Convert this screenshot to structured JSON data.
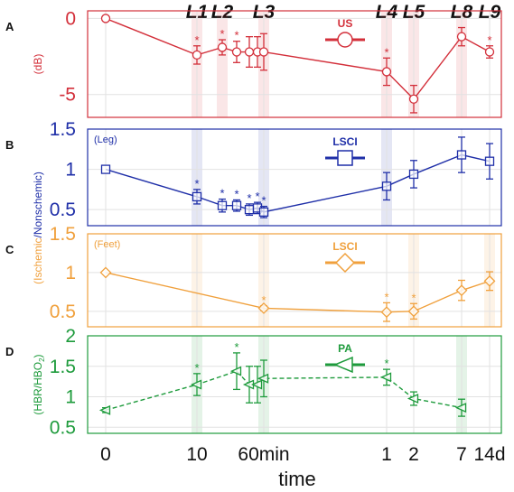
{
  "chart_data": {
    "type": "line",
    "x_tick_labels": [
      "0",
      "10",
      "60min",
      "1",
      "2",
      "7",
      "14d"
    ],
    "xlabel": "time",
    "lesion_labels": [
      "L1",
      "L2",
      "L3",
      "L4",
      "L5",
      "L8",
      "L9"
    ],
    "panels": [
      {
        "letter": "A",
        "ylabel": "(dB)",
        "ylim": [
          -6.5,
          0.5
        ],
        "yticks": [
          {
            "v": 0,
            "t": "0"
          },
          {
            "v": -5,
            "t": "-5"
          }
        ],
        "legend": "US",
        "marker": "circle",
        "color": "#d32f3a",
        "dashed": false,
        "tag": "",
        "shaded": [
          "10",
          "20",
          "60",
          "1d",
          "2d",
          "7d"
        ],
        "points": [
          {
            "x": "0",
            "y": 0,
            "err": 0,
            "sig": false
          },
          {
            "x": "10",
            "y": -2.4,
            "err": 0.6,
            "sig": true
          },
          {
            "x": "20",
            "y": -1.9,
            "err": 0.5,
            "sig": true
          },
          {
            "x": "30",
            "y": -2.2,
            "err": 0.7,
            "sig": true
          },
          {
            "x": "40",
            "y": -2.2,
            "err": 1.0,
            "sig": false
          },
          {
            "x": "50",
            "y": -2.2,
            "err": 1.0,
            "sig": false
          },
          {
            "x": "60",
            "y": -2.2,
            "err": 1.2,
            "sig": false
          },
          {
            "x": "1d",
            "y": -3.5,
            "err": 0.9,
            "sig": true
          },
          {
            "x": "2d",
            "y": -5.3,
            "err": 0.9,
            "sig": false
          },
          {
            "x": "7d",
            "y": -1.2,
            "err": 0.6,
            "sig": false
          },
          {
            "x": "14d",
            "y": -2.2,
            "err": 0.4,
            "sig": true
          }
        ]
      },
      {
        "letter": "B",
        "ylabel": "",
        "ylim": [
          0.3,
          1.5
        ],
        "yticks": [
          {
            "v": 1.5,
            "t": "1.5"
          },
          {
            "v": 1,
            "t": "1"
          },
          {
            "v": 0.5,
            "t": "0.5"
          }
        ],
        "legend": "LSCI",
        "marker": "square",
        "color": "#1f2fa8",
        "dashed": false,
        "tag": "(Leg)",
        "shaded": [
          "10",
          "60",
          "1d"
        ],
        "points": [
          {
            "x": "0",
            "y": 1.0,
            "err": 0,
            "sig": false
          },
          {
            "x": "10",
            "y": 0.66,
            "err": 0.09,
            "sig": true
          },
          {
            "x": "20",
            "y": 0.55,
            "err": 0.08,
            "sig": true
          },
          {
            "x": "30",
            "y": 0.55,
            "err": 0.07,
            "sig": true
          },
          {
            "x": "40",
            "y": 0.5,
            "err": 0.07,
            "sig": true
          },
          {
            "x": "50",
            "y": 0.52,
            "err": 0.07,
            "sig": true
          },
          {
            "x": "60",
            "y": 0.47,
            "err": 0.07,
            "sig": true
          },
          {
            "x": "1d",
            "y": 0.79,
            "err": 0.17,
            "sig": false
          },
          {
            "x": "2d",
            "y": 0.94,
            "err": 0.17,
            "sig": false
          },
          {
            "x": "7d",
            "y": 1.18,
            "err": 0.22,
            "sig": false
          },
          {
            "x": "14d",
            "y": 1.1,
            "err": 0.22,
            "sig": false
          }
        ]
      },
      {
        "letter": "C",
        "ylabel": "",
        "ylim": [
          0.3,
          1.5
        ],
        "yticks": [
          {
            "v": 1.5,
            "t": "1.5"
          },
          {
            "v": 1,
            "t": "1"
          },
          {
            "v": 0.5,
            "t": "0.5"
          }
        ],
        "legend": "LSCI",
        "marker": "diamond",
        "color": "#f0a03c",
        "dashed": false,
        "tag": "(Feet)",
        "shaded": [
          "10",
          "60",
          "2d",
          "14d"
        ],
        "points": [
          {
            "x": "0",
            "y": 1.0,
            "err": 0,
            "sig": false
          },
          {
            "x": "60",
            "y": 0.54,
            "err": 0.03,
            "sig": true
          },
          {
            "x": "1d",
            "y": 0.49,
            "err": 0.12,
            "sig": true
          },
          {
            "x": "2d",
            "y": 0.5,
            "err": 0.1,
            "sig": true
          },
          {
            "x": "7d",
            "y": 0.77,
            "err": 0.13,
            "sig": false
          },
          {
            "x": "14d",
            "y": 0.89,
            "err": 0.12,
            "sig": false
          }
        ]
      },
      {
        "letter": "D",
        "ylabel": "",
        "ylim": [
          0.4,
          2.0
        ],
        "yticks": [
          {
            "v": 2,
            "t": "2"
          },
          {
            "v": 1.5,
            "t": "1.5"
          },
          {
            "v": 1,
            "t": "1"
          },
          {
            "v": 0.5,
            "t": "0.5"
          }
        ],
        "legend": "PA",
        "marker": "triangle",
        "color": "#1e9b3c",
        "dashed": true,
        "tag": "",
        "shaded": [
          "10",
          "60",
          "7d"
        ],
        "points": [
          {
            "x": "0",
            "y": 0.78,
            "err": 0.04,
            "sig": false
          },
          {
            "x": "10",
            "y": 1.2,
            "err": 0.18,
            "sig": true
          },
          {
            "x": "30",
            "y": 1.42,
            "err": 0.3,
            "sig": true
          },
          {
            "x": "40",
            "y": 1.2,
            "err": 0.3,
            "sig": false
          },
          {
            "x": "50",
            "y": 1.2,
            "err": 0.3,
            "sig": false
          },
          {
            "x": "60",
            "y": 1.3,
            "err": 0.3,
            "sig": false
          },
          {
            "x": "1d",
            "y": 1.32,
            "err": 0.13,
            "sig": true
          },
          {
            "x": "2d",
            "y": 0.97,
            "err": 0.11,
            "sig": false
          },
          {
            "x": "7d",
            "y": 0.82,
            "err": 0.14,
            "sig": false
          }
        ]
      }
    ],
    "shared_ylabel": "(Ischemic/Nonschemic)",
    "d_ylabel_main": "(HBR/HBO",
    "d_ylabel_sub": "2",
    "d_ylabel_end": ")"
  }
}
